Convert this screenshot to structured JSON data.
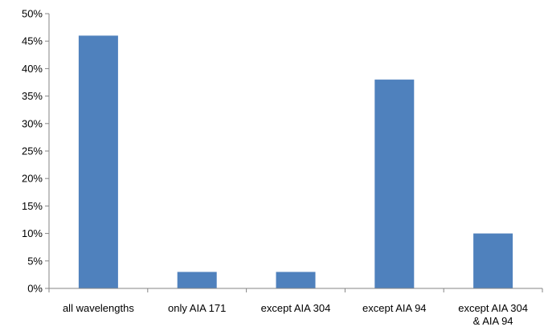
{
  "chart_data": {
    "type": "bar",
    "title": "",
    "xlabel": "",
    "ylabel": "",
    "categories": [
      [
        "all wavelengths"
      ],
      [
        "only AIA 171"
      ],
      [
        "except AIA 304"
      ],
      [
        "except AIA 94"
      ],
      [
        "except AIA 304",
        "& AIA 94"
      ]
    ],
    "values": [
      46,
      3,
      3,
      38,
      10
    ],
    "value_unit": "%",
    "ylim": [
      0,
      50
    ],
    "ytick_step": 5,
    "yticks": [
      "0%",
      "5%",
      "10%",
      "15%",
      "20%",
      "25%",
      "30%",
      "35%",
      "40%",
      "45%",
      "50%"
    ],
    "grid": false,
    "legend": "none",
    "bar_color": "#4f81bd"
  }
}
